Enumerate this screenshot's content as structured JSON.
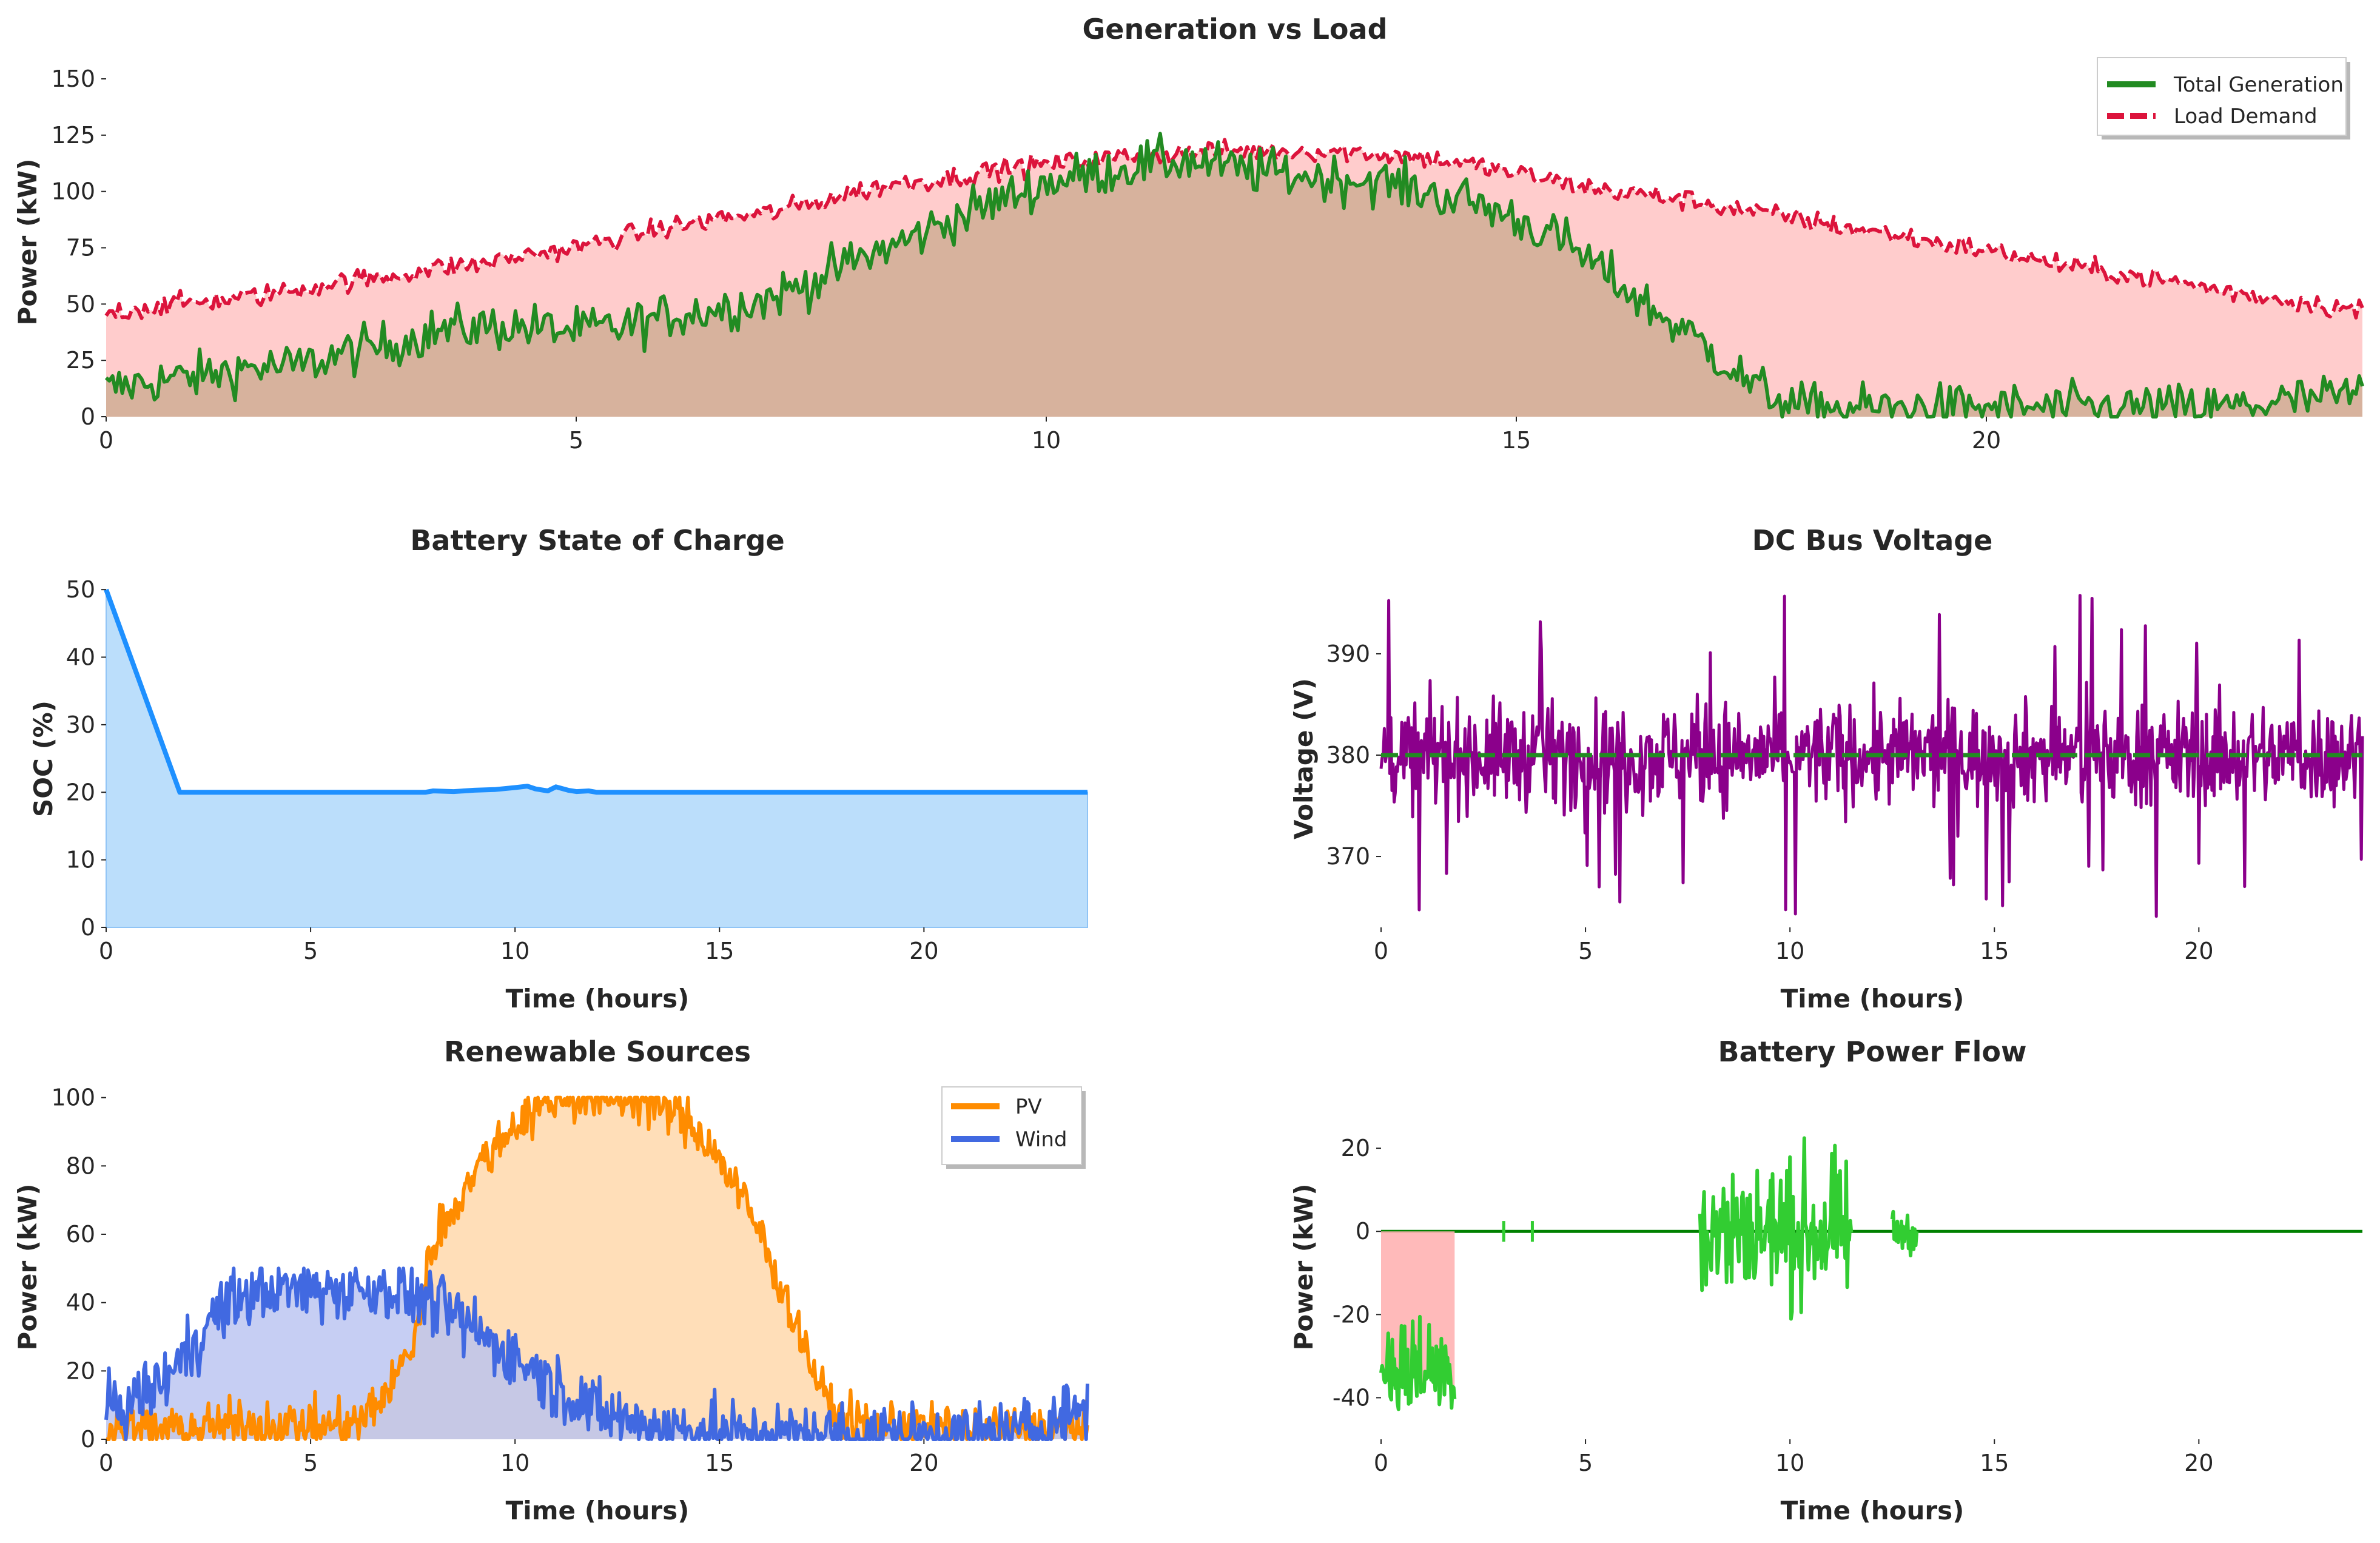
{
  "chart_data": [
    {
      "id": "gen",
      "type": "area",
      "title": "Generation vs Load",
      "xlabel": "",
      "ylabel": "Power (kW)",
      "xlim": [
        0,
        24
      ],
      "ylim": [
        0,
        157
      ],
      "xticks": [
        0,
        5,
        10,
        15,
        20
      ],
      "yticks": [
        0,
        25,
        50,
        75,
        100,
        125,
        150
      ],
      "grid": false,
      "legend_position": "top-right",
      "series": [
        {
          "key": "generation",
          "name": "Total Generation",
          "color": "#228B22",
          "style": "solid",
          "x": [
            0,
            0.5,
            1,
            1.5,
            2,
            2.5,
            3,
            3.5,
            4,
            4.5,
            5,
            5.5,
            6,
            6.5,
            7,
            7.5,
            8,
            8.5,
            9,
            9.5,
            10,
            10.5,
            11,
            11.5,
            12,
            12.5,
            13,
            13.5,
            14,
            14.5,
            15,
            15.5,
            16,
            16.5,
            17,
            17.5,
            18,
            18.5,
            19,
            19.5,
            20,
            20.5,
            21,
            21.5,
            22,
            22.5,
            23,
            23.5,
            24
          ],
          "values": [
            12,
            16,
            18,
            22,
            22,
            28,
            32,
            38,
            40,
            40,
            38,
            40,
            45,
            48,
            52,
            60,
            70,
            78,
            88,
            96,
            104,
            108,
            112,
            114,
            110,
            108,
            106,
            105,
            100,
            96,
            88,
            78,
            62,
            46,
            32,
            14,
            4,
            4,
            4,
            4,
            4,
            4,
            4,
            4,
            4,
            4,
            6,
            8,
            10
          ],
          "noise": 9
        },
        {
          "key": "load",
          "name": "Load Demand",
          "color": "#DC143C",
          "style": "dashed",
          "x": [
            0,
            0.5,
            1,
            1.5,
            2,
            2.5,
            3,
            3.5,
            4,
            4.5,
            5,
            5.5,
            6,
            6.5,
            7,
            7.5,
            8,
            8.5,
            9,
            9.5,
            10,
            10.5,
            11,
            11.5,
            12,
            12.5,
            13,
            13.5,
            14,
            14.5,
            15,
            15.5,
            16,
            16.5,
            17,
            17.5,
            18,
            18.5,
            19,
            19.5,
            20,
            20.5,
            21,
            21.5,
            22,
            22.5,
            23,
            23.5,
            24
          ],
          "values": [
            46,
            49,
            51,
            53,
            56,
            60,
            62,
            66,
            68,
            72,
            75,
            80,
            84,
            88,
            90,
            95,
            100,
            104,
            106,
            110,
            112,
            114,
            116,
            117,
            118,
            118,
            118,
            117,
            115,
            112,
            108,
            104,
            100,
            98,
            95,
            91,
            88,
            84,
            81,
            77,
            74,
            70,
            66,
            63,
            60,
            56,
            53,
            50,
            47
          ],
          "noise": 4
        }
      ]
    },
    {
      "id": "soc",
      "type": "area",
      "title": "Battery State of Charge",
      "xlabel": "Time (hours)",
      "ylabel": "SOC (%)",
      "xlim": [
        0,
        24
      ],
      "ylim": [
        0,
        51
      ],
      "xticks": [
        0,
        5,
        10,
        15,
        20
      ],
      "yticks": [
        0,
        10,
        20,
        30,
        40,
        50
      ],
      "grid": false,
      "series": [
        {
          "key": "soc",
          "name": "",
          "color": "#1E90FF",
          "x": [
            0,
            1.8,
            7.8,
            8,
            8.5,
            9,
            9.5,
            10,
            10.3,
            10.5,
            10.8,
            11,
            11.3,
            11.5,
            11.8,
            12,
            24
          ],
          "values": [
            50,
            20,
            20,
            20.2,
            20.1,
            20.3,
            20.4,
            20.7,
            20.9,
            20.5,
            20.2,
            20.8,
            20.3,
            20.1,
            20.2,
            20,
            20
          ]
        }
      ]
    },
    {
      "id": "volt",
      "type": "line",
      "title": "DC Bus Voltage",
      "xlabel": "Time (hours)",
      "ylabel": "Voltage (V)",
      "xlim": [
        0,
        24
      ],
      "ylim": [
        363,
        397
      ],
      "xticks": [
        0,
        5,
        10,
        15,
        20
      ],
      "yticks": [
        370,
        380,
        390
      ],
      "grid": false,
      "reference_line": {
        "value": 380,
        "color": "#228B22",
        "style": "dashed"
      },
      "series": [
        {
          "key": "voltage",
          "name": "",
          "color": "#8B008B",
          "mean": 380,
          "noise": 4,
          "min": 363.5,
          "max": 396.5
        }
      ]
    },
    {
      "id": "ren",
      "type": "area",
      "title": "Renewable Sources",
      "xlabel": "Time (hours)",
      "ylabel": "Power (kW)",
      "xlim": [
        0,
        24
      ],
      "ylim": [
        0,
        101
      ],
      "xticks": [
        0,
        5,
        10,
        15,
        20
      ],
      "yticks": [
        0,
        20,
        40,
        60,
        80,
        100
      ],
      "grid": false,
      "legend_position": "top-right",
      "series": [
        {
          "key": "pv",
          "name": "PV",
          "color": "#FF8C00",
          "x": [
            0,
            1,
            2,
            3,
            4,
            5,
            6,
            6.3,
            7,
            7.5,
            8,
            8.5,
            9,
            9.5,
            10,
            10.5,
            11,
            11.5,
            12,
            12.5,
            13,
            13.5,
            14,
            14.5,
            15,
            15.5,
            16,
            16.5,
            17,
            17.5,
            18,
            19,
            20,
            21,
            22,
            23,
            24
          ],
          "values": [
            3,
            3,
            3,
            4,
            4,
            4,
            4,
            6,
            16,
            28,
            58,
            68,
            78,
            86,
            92,
            97,
            100,
            100,
            100,
            100,
            100,
            98,
            95,
            90,
            82,
            72,
            60,
            45,
            30,
            14,
            5,
            4,
            4,
            3,
            3,
            3,
            3
          ],
          "noise": 6
        },
        {
          "key": "wind",
          "name": "Wind",
          "color": "#4169E1",
          "x": [
            0,
            0.5,
            1,
            1.5,
            2,
            2.5,
            3,
            4,
            5,
            6,
            7,
            8,
            9,
            9.5,
            10,
            10.5,
            11,
            11.5,
            12,
            13,
            14,
            15,
            16,
            17,
            18,
            19,
            20,
            21,
            22,
            23,
            23.5,
            24
          ],
          "values": [
            8,
            10,
            14,
            18,
            26,
            34,
            40,
            44,
            44,
            44,
            44,
            40,
            32,
            28,
            24,
            20,
            16,
            12,
            8,
            5,
            3,
            2,
            1,
            1,
            1,
            1,
            1,
            1,
            2,
            4,
            8,
            10
          ],
          "noise": 8
        }
      ]
    },
    {
      "id": "bat",
      "type": "line",
      "title": "Battery Power Flow",
      "xlabel": "Time (hours)",
      "ylabel": "Power (kW)",
      "xlim": [
        0,
        24
      ],
      "ylim": [
        -50,
        33
      ],
      "xticks": [
        0,
        5,
        10,
        15,
        20
      ],
      "yticks": [
        -40,
        -20,
        0,
        20
      ],
      "grid": false,
      "series": [
        {
          "key": "battery",
          "name": "",
          "color": "#32CD32",
          "zero_line_color": "#008000",
          "segments": [
            {
              "x": [
                0,
                1.8
              ],
              "mean": -33,
              "noise": 10
            },
            {
              "x": [
                7.8,
                11.5
              ],
              "mean": 0,
              "noise": 14
            },
            {
              "x": [
                12.5,
                13.1
              ],
              "mean": 0,
              "noise": 4
            }
          ]
        }
      ]
    }
  ],
  "legend": {
    "gen": [
      "Total Generation",
      "Load Demand"
    ],
    "ren": [
      "PV",
      "Wind"
    ]
  }
}
